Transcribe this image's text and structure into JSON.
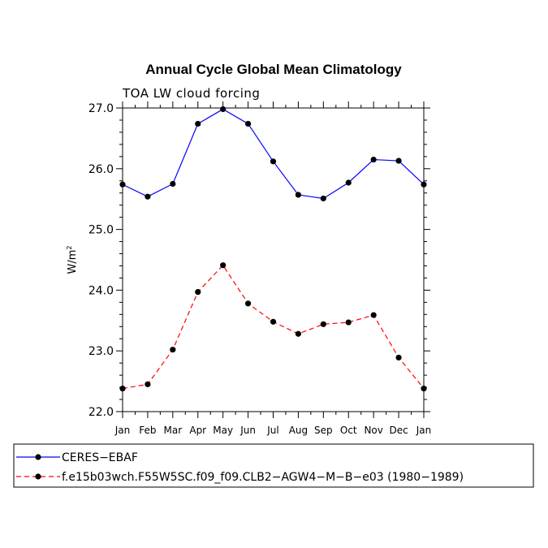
{
  "chart_data": {
    "type": "line",
    "title": "Annual Cycle Global Mean Climatology",
    "subtitle": "TOA LW cloud forcing",
    "ylabel": "W/m",
    "ylabel_superscript": "2",
    "xlabel": "",
    "categories": [
      "Jan",
      "Feb",
      "Mar",
      "Apr",
      "May",
      "Jun",
      "Jul",
      "Aug",
      "Sep",
      "Oct",
      "Nov",
      "Dec",
      "Jan"
    ],
    "ylim": [
      22.0,
      27.0
    ],
    "yticks": [
      "22.0",
      "23.0",
      "24.0",
      "25.0",
      "26.0",
      "27.0"
    ],
    "series": [
      {
        "name": "CERES−EBAF",
        "color": "#0000ff",
        "dash": "solid",
        "values": [
          25.74,
          25.54,
          25.75,
          26.74,
          26.98,
          26.74,
          26.12,
          25.57,
          25.51,
          25.77,
          26.15,
          26.13,
          25.74
        ]
      },
      {
        "name": "f.e15b03wch.F55W5SC.f09_f09.CLB2−AGW4−M−B−e03 (1980−1989)",
        "color": "#ff0000",
        "dash": "dashed",
        "values": [
          22.38,
          22.45,
          23.02,
          23.97,
          24.41,
          23.78,
          23.48,
          23.28,
          23.44,
          23.47,
          23.59,
          22.89,
          22.38
        ]
      }
    ]
  }
}
